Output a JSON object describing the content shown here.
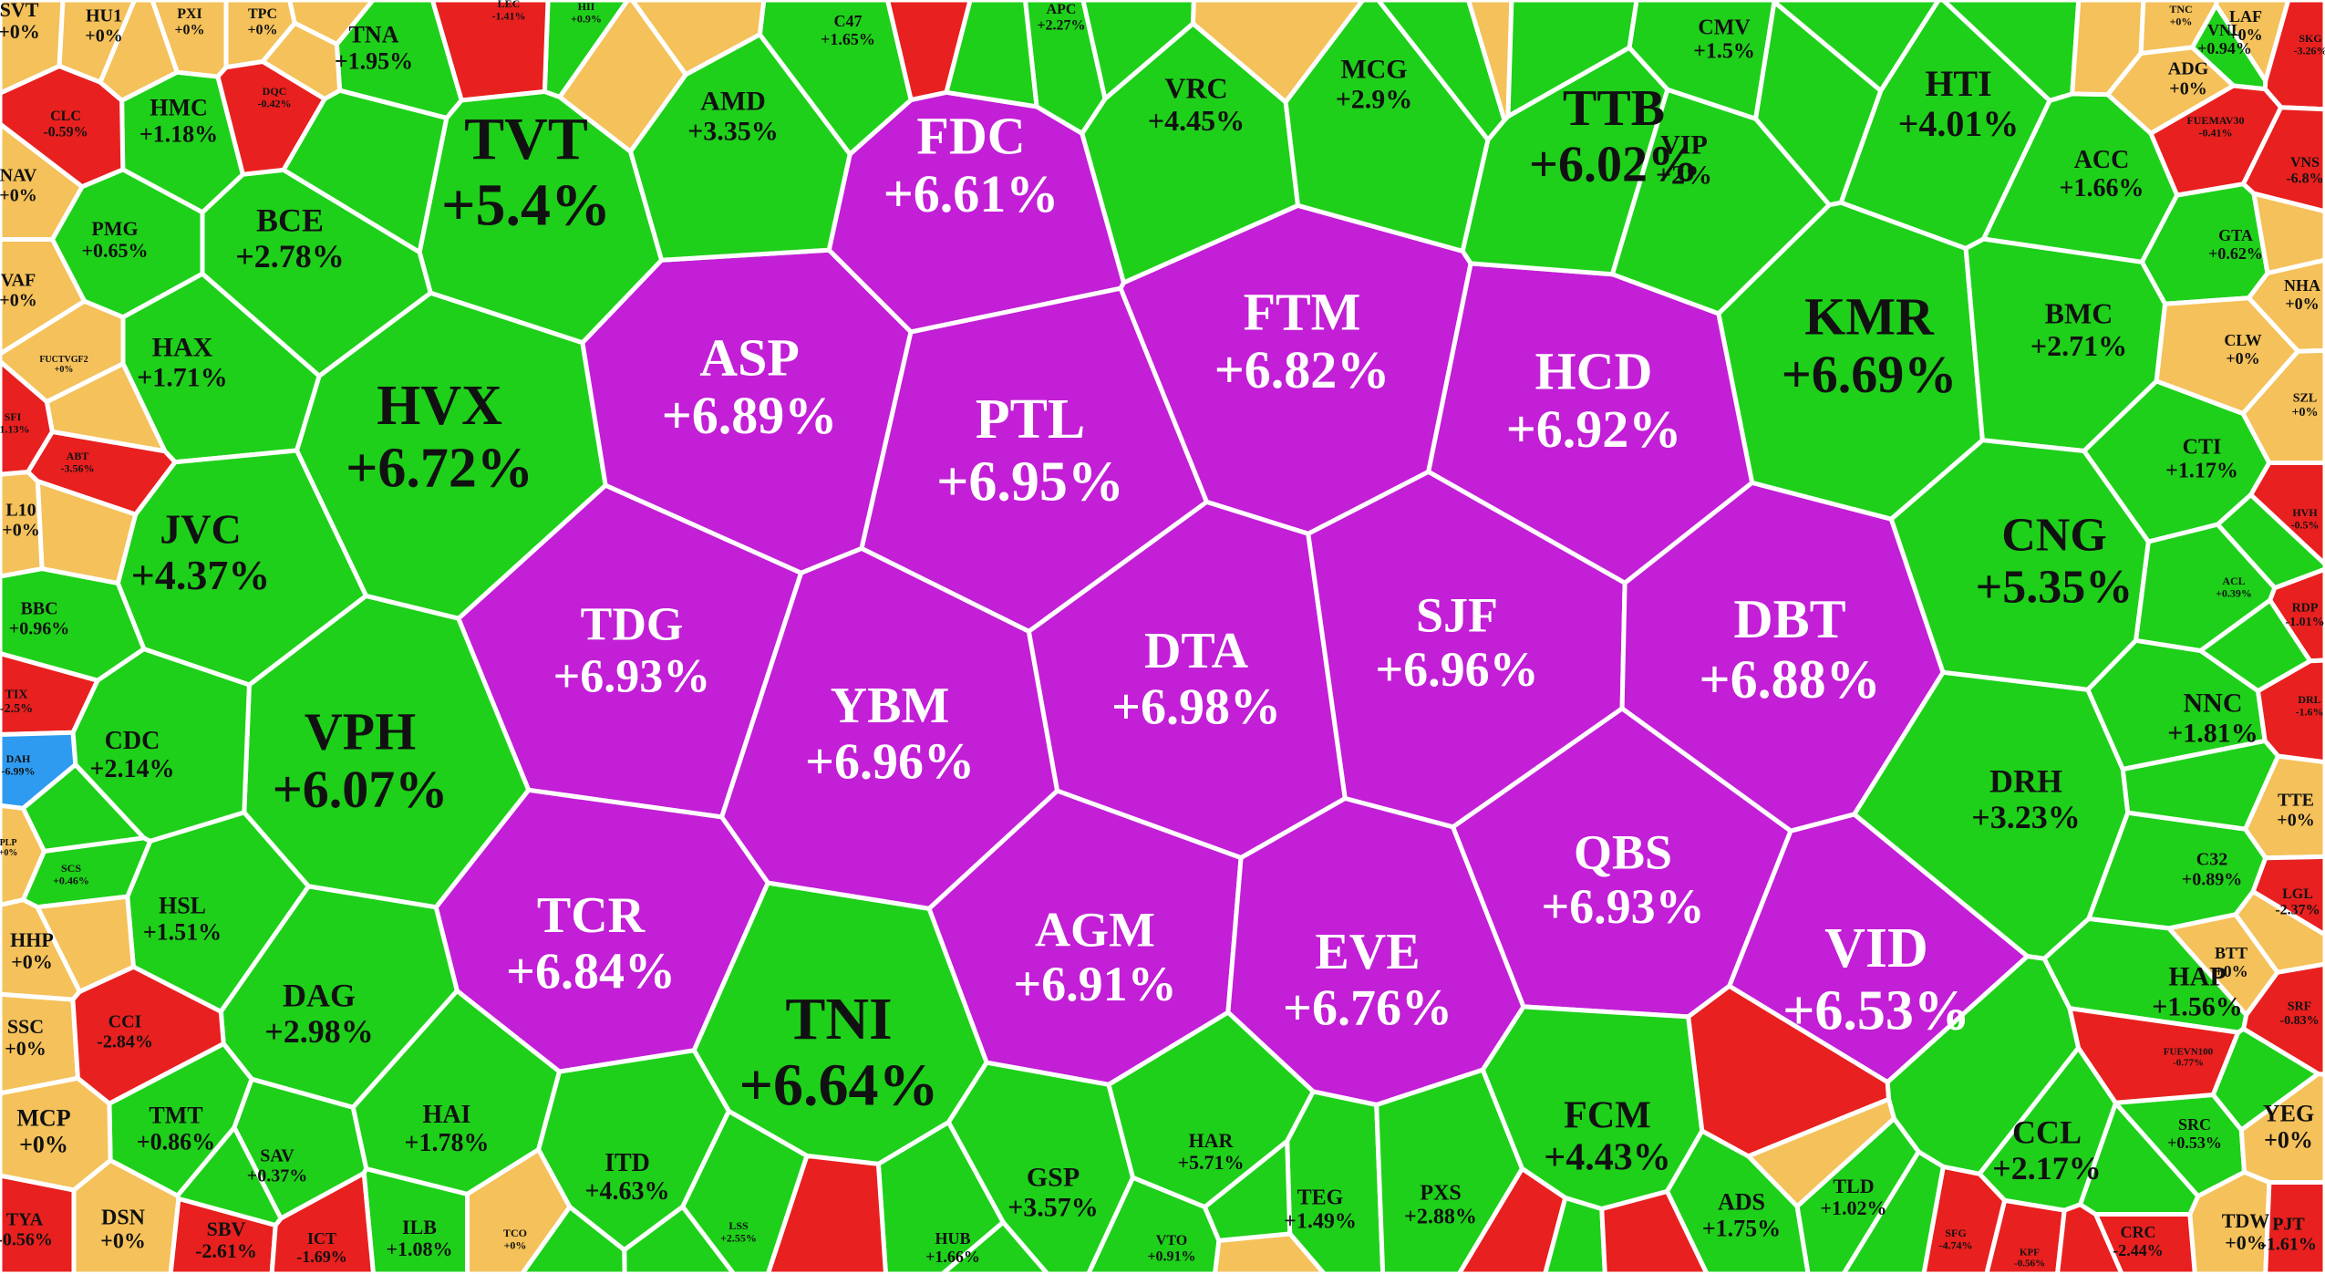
{
  "colors": {
    "ceiling": "#c21fd6",
    "up": "#1ed01a",
    "flat": "#f4c15a",
    "down": "#e8201f",
    "floor": "#2e9bf0",
    "border": "#ffffff",
    "text_dark": "#111111",
    "text_light": "#ffffff"
  },
  "chart_data": {
    "type": "voronoi-treemap",
    "title": "",
    "cells": [
      {
        "ticker": "FDC",
        "change": "+6.61%",
        "value": 6.61,
        "status": "ceiling"
      },
      {
        "ticker": "ASP",
        "change": "+6.89%",
        "value": 6.89,
        "status": "ceiling"
      },
      {
        "ticker": "PTL",
        "change": "+6.95%",
        "value": 6.95,
        "status": "ceiling"
      },
      {
        "ticker": "FTM",
        "change": "+6.82%",
        "value": 6.82,
        "status": "ceiling"
      },
      {
        "ticker": "HCD",
        "change": "+6.92%",
        "value": 6.92,
        "status": "ceiling"
      },
      {
        "ticker": "TDG",
        "change": "+6.93%",
        "value": 6.93,
        "status": "ceiling"
      },
      {
        "ticker": "YBM",
        "change": "+6.96%",
        "value": 6.96,
        "status": "ceiling"
      },
      {
        "ticker": "DTA",
        "change": "+6.98%",
        "value": 6.98,
        "status": "ceiling"
      },
      {
        "ticker": "SJF",
        "change": "+6.96%",
        "value": 6.96,
        "status": "ceiling"
      },
      {
        "ticker": "DBT",
        "change": "+6.88%",
        "value": 6.88,
        "status": "ceiling"
      },
      {
        "ticker": "TCR",
        "change": "+6.84%",
        "value": 6.84,
        "status": "ceiling"
      },
      {
        "ticker": "AGM",
        "change": "+6.91%",
        "value": 6.91,
        "status": "ceiling"
      },
      {
        "ticker": "EVE",
        "change": "+6.76%",
        "value": 6.76,
        "status": "ceiling"
      },
      {
        "ticker": "QBS",
        "change": "+6.93%",
        "value": 6.93,
        "status": "ceiling"
      },
      {
        "ticker": "VID",
        "change": "+6.53%",
        "value": 6.53,
        "status": "ceiling"
      },
      {
        "ticker": "TVT",
        "change": "+5.4%",
        "value": 5.4,
        "status": "up"
      },
      {
        "ticker": "AMD",
        "change": "+3.35%",
        "value": 3.35,
        "status": "up"
      },
      {
        "ticker": "VRC",
        "change": "+4.45%",
        "value": 4.45,
        "status": "up"
      },
      {
        "ticker": "MCG",
        "change": "+2.9%",
        "value": 2.9,
        "status": "up"
      },
      {
        "ticker": "TTB",
        "change": "+6.02%",
        "value": 6.02,
        "status": "up"
      },
      {
        "ticker": "VIP",
        "change": "+2%",
        "value": 2,
        "status": "up"
      },
      {
        "ticker": "HTI",
        "change": "+4.01%",
        "value": 4.01,
        "status": "up"
      },
      {
        "ticker": "KMR",
        "change": "+6.69%",
        "value": 6.69,
        "status": "up"
      },
      {
        "ticker": "BMC",
        "change": "+2.71%",
        "value": 2.71,
        "status": "up"
      },
      {
        "ticker": "ACC",
        "change": "+1.66%",
        "value": 1.66,
        "status": "up"
      },
      {
        "ticker": "CNG",
        "change": "+5.35%",
        "value": 5.35,
        "status": "up"
      },
      {
        "ticker": "DRH",
        "change": "+3.23%",
        "value": 3.23,
        "status": "up"
      },
      {
        "ticker": "HVX",
        "change": "+6.72%",
        "value": 6.72,
        "status": "up"
      },
      {
        "ticker": "BCE",
        "change": "+2.78%",
        "value": 2.78,
        "status": "up"
      },
      {
        "ticker": "HMC",
        "change": "+1.18%",
        "value": 1.18,
        "status": "up"
      },
      {
        "ticker": "TNA",
        "change": "+1.95%",
        "value": 1.95,
        "status": "up"
      },
      {
        "ticker": "PMG",
        "change": "+0.65%",
        "value": 0.65,
        "status": "up"
      },
      {
        "ticker": "HAX",
        "change": "+1.71%",
        "value": 1.71,
        "status": "up"
      },
      {
        "ticker": "JVC",
        "change": "+4.37%",
        "value": 4.37,
        "status": "up"
      },
      {
        "ticker": "VPH",
        "change": "+6.07%",
        "value": 6.07,
        "status": "up"
      },
      {
        "ticker": "CDC",
        "change": "+2.14%",
        "value": 2.14,
        "status": "up"
      },
      {
        "ticker": "HSL",
        "change": "+1.51%",
        "value": 1.51,
        "status": "up"
      },
      {
        "ticker": "DAG",
        "change": "+2.98%",
        "value": 2.98,
        "status": "up"
      },
      {
        "ticker": "TNI",
        "change": "+6.64%",
        "value": 6.64,
        "status": "up"
      },
      {
        "ticker": "HAI",
        "change": "+1.78%",
        "value": 1.78,
        "status": "up"
      },
      {
        "ticker": "TMT",
        "change": "+0.86%",
        "value": 0.86,
        "status": "up"
      },
      {
        "ticker": "SAV",
        "change": "+0.37%",
        "value": 0.37,
        "status": "up"
      },
      {
        "ticker": "ITD",
        "change": "+4.63%",
        "value": 4.63,
        "status": "up"
      },
      {
        "ticker": "ILB",
        "change": "+1.08%",
        "value": 1.08,
        "status": "up"
      },
      {
        "ticker": "GSP",
        "change": "+3.57%",
        "value": 3.57,
        "status": "up"
      },
      {
        "ticker": "HAR",
        "change": "+5.71%",
        "value": 5.71,
        "status": "up"
      },
      {
        "ticker": "TEG",
        "change": "+1.49%",
        "value": 1.49,
        "status": "up"
      },
      {
        "ticker": "PXS",
        "change": "+2.88%",
        "value": 2.88,
        "status": "up"
      },
      {
        "ticker": "FCM",
        "change": "+4.43%",
        "value": 4.43,
        "status": "up"
      },
      {
        "ticker": "ADS",
        "change": "+1.75%",
        "value": 1.75,
        "status": "up"
      },
      {
        "ticker": "TLD",
        "change": "+1.02%",
        "value": 1.02,
        "status": "up"
      },
      {
        "ticker": "CCL",
        "change": "+2.17%",
        "value": 2.17,
        "status": "up"
      },
      {
        "ticker": "HAP",
        "change": "+1.56%",
        "value": 1.56,
        "status": "up"
      },
      {
        "ticker": "NNC",
        "change": "+1.81%",
        "value": 1.81,
        "status": "up"
      },
      {
        "ticker": "CTI",
        "change": "+1.17%",
        "value": 1.17,
        "status": "up"
      },
      {
        "ticker": "CMV",
        "change": "+1.5%",
        "value": 1.5,
        "status": "up"
      },
      {
        "ticker": "C47",
        "change": "+1.65%",
        "value": 1.65,
        "status": "up"
      },
      {
        "ticker": "APC",
        "change": "+2.27%",
        "value": 2.27,
        "status": "up"
      },
      {
        "ticker": "VNL",
        "change": "+0.94%",
        "value": 0.94,
        "status": "up"
      },
      {
        "ticker": "GTA",
        "change": "+0.62%",
        "value": 0.62,
        "status": "up"
      },
      {
        "ticker": "C32",
        "change": "+0.89%",
        "value": 0.89,
        "status": "up"
      },
      {
        "ticker": "SRC",
        "change": "+0.53%",
        "value": 0.53,
        "status": "up"
      },
      {
        "ticker": "BBC",
        "change": "+0.96%",
        "value": 0.96,
        "status": "up"
      },
      {
        "ticker": "VTO",
        "change": "+0.91%",
        "value": 0.91,
        "status": "up"
      },
      {
        "ticker": "HUB",
        "change": "+1.66%",
        "value": 1.66,
        "status": "up"
      },
      {
        "ticker": "ACL",
        "change": "+0.39%",
        "value": 0.39,
        "status": "up"
      },
      {
        "ticker": "SCS",
        "change": "+0.46%",
        "value": 0.46,
        "status": "up"
      },
      {
        "ticker": "LSS",
        "change": "+2.55%",
        "value": 2.55,
        "status": "up"
      },
      {
        "ticker": "HII",
        "change": "+0.9%",
        "value": 0.9,
        "status": "up"
      },
      {
        "ticker": "SVT",
        "change": "+0%",
        "value": 0,
        "status": "flat"
      },
      {
        "ticker": "HU1",
        "change": "+0%",
        "value": 0,
        "status": "flat"
      },
      {
        "ticker": "PXI",
        "change": "+0%",
        "value": 0,
        "status": "flat"
      },
      {
        "ticker": "TPC",
        "change": "+0%",
        "value": 0,
        "status": "flat"
      },
      {
        "ticker": "NAV",
        "change": "+0%",
        "value": 0,
        "status": "flat"
      },
      {
        "ticker": "VAF",
        "change": "+0%",
        "value": 0,
        "status": "flat"
      },
      {
        "ticker": "FUCTVGF2",
        "change": "+0%",
        "value": 0,
        "status": "flat"
      },
      {
        "ticker": "L10",
        "change": "+0%",
        "value": 0,
        "status": "flat"
      },
      {
        "ticker": "PLP",
        "change": "+0%",
        "value": 0,
        "status": "flat"
      },
      {
        "ticker": "HHP",
        "change": "+0%",
        "value": 0,
        "status": "flat"
      },
      {
        "ticker": "SSC",
        "change": "+0%",
        "value": 0,
        "status": "flat"
      },
      {
        "ticker": "MCP",
        "change": "+0%",
        "value": 0,
        "status": "flat"
      },
      {
        "ticker": "DSN",
        "change": "+0%",
        "value": 0,
        "status": "flat"
      },
      {
        "ticker": "TCO",
        "change": "+0%",
        "value": 0,
        "status": "flat"
      },
      {
        "ticker": "TNC",
        "change": "+0%",
        "value": 0,
        "status": "flat"
      },
      {
        "ticker": "LAF",
        "change": "+0%",
        "value": 0,
        "status": "flat"
      },
      {
        "ticker": "ADG",
        "change": "+0%",
        "value": 0,
        "status": "flat"
      },
      {
        "ticker": "NHA",
        "change": "+0%",
        "value": 0,
        "status": "flat"
      },
      {
        "ticker": "CLW",
        "change": "+0%",
        "value": 0,
        "status": "flat"
      },
      {
        "ticker": "SZL",
        "change": "+0%",
        "value": 0,
        "status": "flat"
      },
      {
        "ticker": "TTE",
        "change": "+0%",
        "value": 0,
        "status": "flat"
      },
      {
        "ticker": "BTT",
        "change": "+0%",
        "value": 0,
        "status": "flat"
      },
      {
        "ticker": "YEG",
        "change": "+0%",
        "value": 0,
        "status": "flat"
      },
      {
        "ticker": "TDW",
        "change": "+0%",
        "value": 0,
        "status": "flat"
      },
      {
        "ticker": "CLC",
        "change": "-0.59%",
        "value": -0.59,
        "status": "down"
      },
      {
        "ticker": "DQC",
        "change": "-0.42%",
        "value": -0.42,
        "status": "down"
      },
      {
        "ticker": "LEC",
        "change": "-1.41%",
        "value": -1.41,
        "status": "down"
      },
      {
        "ticker": "SFI",
        "change": "-1.13%",
        "value": -1.13,
        "status": "down"
      },
      {
        "ticker": "ABT",
        "change": "-3.56%",
        "value": -3.56,
        "status": "down"
      },
      {
        "ticker": "TIX",
        "change": "-2.5%",
        "value": -2.5,
        "status": "down"
      },
      {
        "ticker": "CCI",
        "change": "-2.84%",
        "value": -2.84,
        "status": "down"
      },
      {
        "ticker": "TYA",
        "change": "-0.56%",
        "value": -0.56,
        "status": "down"
      },
      {
        "ticker": "SBV",
        "change": "-2.61%",
        "value": -2.61,
        "status": "down"
      },
      {
        "ticker": "ICT",
        "change": "-1.69%",
        "value": -1.69,
        "status": "down"
      },
      {
        "ticker": "SKG",
        "change": "-3.26%",
        "value": -3.26,
        "status": "down"
      },
      {
        "ticker": "FUEMAV30",
        "change": "-0.41%",
        "value": -0.41,
        "status": "down"
      },
      {
        "ticker": "VNS",
        "change": "-6.8%",
        "value": -6.8,
        "status": "down"
      },
      {
        "ticker": "HVH",
        "change": "-0.5%",
        "value": -0.5,
        "status": "down"
      },
      {
        "ticker": "RDP",
        "change": "-1.01%",
        "value": -1.01,
        "status": "down"
      },
      {
        "ticker": "DRL",
        "change": "-1.6%",
        "value": -1.6,
        "status": "down"
      },
      {
        "ticker": "LGL",
        "change": "-2.37%",
        "value": -2.37,
        "status": "down"
      },
      {
        "ticker": "SRF",
        "change": "-0.83%",
        "value": -0.83,
        "status": "down"
      },
      {
        "ticker": "FUEVN100",
        "change": "-0.77%",
        "value": -0.77,
        "status": "down"
      },
      {
        "ticker": "CRC",
        "change": "-2.44%",
        "value": -2.44,
        "status": "down"
      },
      {
        "ticker": "PJT",
        "change": "-1.61%",
        "value": -1.61,
        "status": "down"
      },
      {
        "ticker": "SFG",
        "change": "-4.74%",
        "value": -4.74,
        "status": "down"
      },
      {
        "ticker": "KPF",
        "change": "-0.56%",
        "value": -0.56,
        "status": "down"
      },
      {
        "ticker": "DAH",
        "change": "-6.99%",
        "value": -6.99,
        "status": "floor"
      }
    ]
  }
}
